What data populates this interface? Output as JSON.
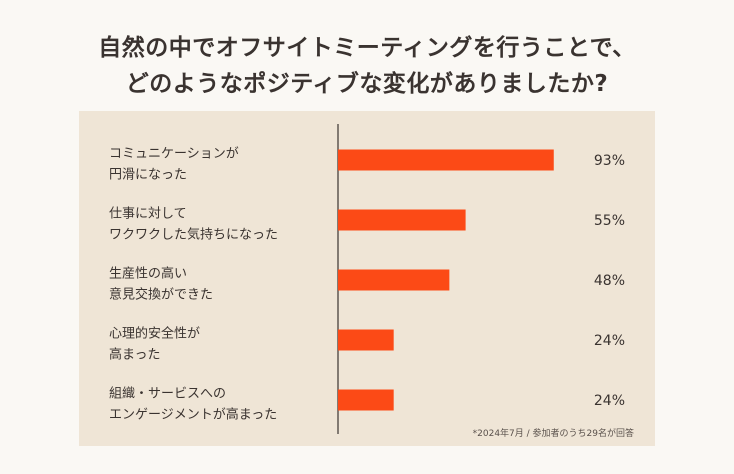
{
  "title_line1": "自然の中でオフサイトミーティングを行うことで、",
  "title_line2": "どのようなポジティブな変化がありましたか?",
  "footnote": "*2024年7月 / 参加者のうち29名が回答",
  "colors": {
    "bar": "#fc4a16",
    "panel": "#efe5d6",
    "axis": "#3a3330"
  },
  "chart_data": {
    "type": "bar",
    "orientation": "horizontal",
    "categories": [
      [
        "コミュニケーションが",
        "円滑になった"
      ],
      [
        "仕事に対して",
        "ワクワクした気持ちになった"
      ],
      [
        "生産性の高い",
        "意見交換ができた"
      ],
      [
        "心理的安全性が",
        "高まった"
      ],
      [
        "組織・サービスへの",
        "エンゲージメントが高まった"
      ]
    ],
    "values": [
      93,
      55,
      48,
      24,
      24
    ],
    "value_labels": [
      "93%",
      "55%",
      "48%",
      "24%",
      "24%"
    ],
    "xlim": [
      0,
      100
    ],
    "grid": false
  }
}
